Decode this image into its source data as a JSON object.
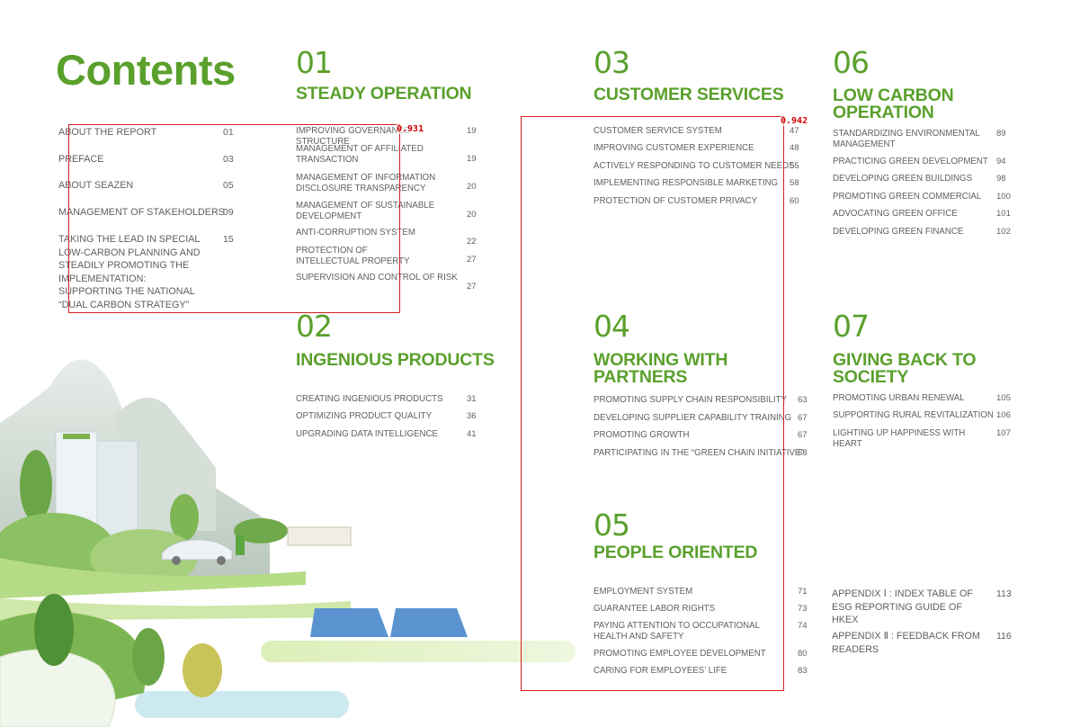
{
  "page_title": "Contents",
  "front": [
    {
      "title": "ABOUT THE REPORT",
      "page": "01"
    },
    {
      "title": "PREFACE",
      "page": "03"
    },
    {
      "title": "ABOUT SEAZEN",
      "page": "05"
    },
    {
      "title": "MANAGEMENT OF STAKEHOLDERS",
      "page": "09"
    },
    {
      "title": "TAKING THE LEAD IN SPECIAL LOW-CARBON PLANNING AND STEADILY PROMOTING THE IMPLEMENTATION: SUPPORTING THE NATIONAL “DUAL CARBON STRATEGY”",
      "page": "15"
    }
  ],
  "sections": {
    "s01": {
      "num": "01",
      "title": "STEADY OPERATION",
      "items": [
        {
          "title": "IMPROVING GOVERNANCE STRUCTURE",
          "page": "19"
        },
        {
          "title": "MANAGEMENT OF AFFILIATED TRANSACTION",
          "page": "19"
        },
        {
          "title": "MANAGEMENT OF INFORMATION DISCLOSURE TRANSPARENCY",
          "page": "20"
        },
        {
          "title": "MANAGEMENT OF SUSTAINABLE DEVELOPMENT",
          "page": "20"
        },
        {
          "title": "ANTI-CORRUPTION SYSTEM",
          "page": "22"
        },
        {
          "title": "PROTECTION OF INTELLECTUAL PROPERTY",
          "page": "27"
        },
        {
          "title": "SUPERVISION AND CONTROL OF RISK",
          "page": "27"
        }
      ]
    },
    "s02": {
      "num": "02",
      "title": "INGENIOUS PRODUCTS",
      "items": [
        {
          "title": "CREATING INGENIOUS PRODUCTS",
          "page": "31"
        },
        {
          "title": "OPTIMIZING PRODUCT QUALITY",
          "page": "36"
        },
        {
          "title": "UPGRADING DATA INTELLIGENCE",
          "page": "41"
        }
      ]
    },
    "s03": {
      "num": "03",
      "title": "CUSTOMER SERVICES",
      "items": [
        {
          "title": "CUSTOMER SERVICE SYSTEM",
          "page": "47"
        },
        {
          "title": "IMPROVING CUSTOMER EXPERIENCE",
          "page": "48"
        },
        {
          "title": "ACTIVELY RESPONDING TO CUSTOMER NEEDS",
          "page": "55"
        },
        {
          "title": "IMPLEMENTING RESPONSIBLE MARKETING",
          "page": "58"
        },
        {
          "title": "PROTECTION OF CUSTOMER PRIVACY",
          "page": "60"
        }
      ]
    },
    "s04": {
      "num": "04",
      "title": "WORKING WITH PARTNERS",
      "items": [
        {
          "title": "PROMOTING SUPPLY CHAIN RESPONSIBILITY",
          "page": "63"
        },
        {
          "title": "DEVELOPING SUPPLIER CAPABILITY TRAINING",
          "page": "67"
        },
        {
          "title": "PROMOTING GROWTH",
          "page": "67"
        },
        {
          "title": "PARTICIPATING IN THE “GREEN CHAIN INITIATIVE”",
          "page": "68"
        }
      ]
    },
    "s05": {
      "num": "05",
      "title": "PEOPLE ORIENTED",
      "items": [
        {
          "title": "EMPLOYMENT SYSTEM",
          "page": "71"
        },
        {
          "title": "GUARANTEE LABOR RIGHTS",
          "page": "73"
        },
        {
          "title": "PAYING ATTENTION TO OCCUPATIONAL HEALTH AND SAFETY",
          "page": "74"
        },
        {
          "title": "PROMOTING EMPLOYEE DEVELOPMENT",
          "page": "80"
        },
        {
          "title": "CARING FOR EMPLOYEES’ LIFE",
          "page": "83"
        }
      ]
    },
    "s06": {
      "num": "06",
      "title": "LOW CARBON OPERATION",
      "items": [
        {
          "title": "STANDARDIZING ENVIRONMENTAL MANAGEMENT",
          "page": "89"
        },
        {
          "title": "PRACTICING GREEN DEVELOPMENT",
          "page": "94"
        },
        {
          "title": "DEVELOPING GREEN BUILDINGS",
          "page": "98"
        },
        {
          "title": "PROMOTING GREEN COMMERCIAL",
          "page": "100"
        },
        {
          "title": "ADVOCATING GREEN OFFICE",
          "page": "101"
        },
        {
          "title": "DEVELOPING GREEN FINANCE",
          "page": "102"
        }
      ]
    },
    "s07": {
      "num": "07",
      "title": "GIVING BACK TO SOCIETY",
      "items": [
        {
          "title": "PROMOTING URBAN RENEWAL",
          "page": "105"
        },
        {
          "title": "SUPPORTING RURAL REVITALIZATION",
          "page": "106"
        },
        {
          "title": "LIGHTING UP HAPPINESS WITH HEART",
          "page": "107"
        }
      ]
    }
  },
  "appendix": [
    {
      "title": "APPENDIX Ⅰ : INDEX TABLE OF ESG REPORTING GUIDE OF HKEx",
      "page": "113"
    },
    {
      "title": "APPENDIX Ⅱ : FEEDBACK FROM READERS",
      "page": "116"
    }
  ],
  "detections": [
    {
      "score": "0.931"
    },
    {
      "score": "0.942"
    }
  ],
  "colors": {
    "accent": "#5aa02c",
    "text": "#606060",
    "detection_box": "#d42020"
  }
}
